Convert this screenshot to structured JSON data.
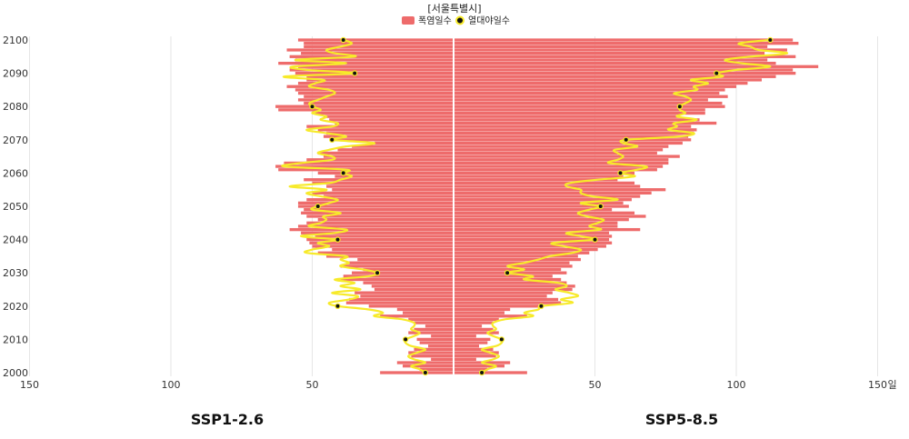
{
  "chart_data": {
    "type": "bar",
    "title": "[서울특별시]",
    "orientation": "horizontal-butterfly",
    "unit": "일",
    "legend": {
      "placement": "top-center",
      "bar_label": "폭염일수",
      "line_label": "열대야일수"
    },
    "colors": {
      "bar": "#ee6b6b",
      "line": "#f7ea2a",
      "marker": "#111111",
      "divider": "#ffffff",
      "grid": "#e6e6e6"
    },
    "x_axis": {
      "left_ticks": [
        150,
        100,
        50
      ],
      "right_ticks": [
        50,
        100,
        150
      ],
      "max": 150
    },
    "y_axis": {
      "ticks": [
        2000,
        2010,
        2020,
        2030,
        2040,
        2050,
        2060,
        2070,
        2080,
        2090,
        2100
      ]
    },
    "years": [
      2000,
      2001,
      2002,
      2003,
      2004,
      2005,
      2006,
      2007,
      2008,
      2009,
      2010,
      2011,
      2012,
      2013,
      2014,
      2015,
      2016,
      2017,
      2018,
      2019,
      2020,
      2021,
      2022,
      2023,
      2024,
      2025,
      2026,
      2027,
      2028,
      2029,
      2030,
      2031,
      2032,
      2033,
      2034,
      2035,
      2036,
      2037,
      2038,
      2039,
      2040,
      2041,
      2042,
      2043,
      2044,
      2045,
      2046,
      2047,
      2048,
      2049,
      2050,
      2051,
      2052,
      2053,
      2054,
      2055,
      2056,
      2057,
      2058,
      2059,
      2060,
      2061,
      2062,
      2063,
      2064,
      2065,
      2066,
      2067,
      2068,
      2069,
      2070,
      2071,
      2072,
      2073,
      2074,
      2075,
      2076,
      2077,
      2078,
      2079,
      2080,
      2081,
      2082,
      2083,
      2084,
      2085,
      2086,
      2087,
      2088,
      2089,
      2090,
      2091,
      2092,
      2093,
      2094,
      2095,
      2096,
      2097,
      2098,
      2099,
      2100
    ],
    "series": [
      {
        "name": "SSP1-2.6",
        "side": "left",
        "heatwave_days": [
          26,
          12,
          18,
          20,
          8,
          15,
          16,
          14,
          9,
          12,
          13,
          8,
          16,
          14,
          10,
          14,
          16,
          26,
          18,
          20,
          30,
          38,
          37,
          33,
          35,
          28,
          29,
          32,
          40,
          39,
          36,
          32,
          40,
          38,
          34,
          45,
          48,
          43,
          50,
          51,
          52,
          49,
          54,
          58,
          55,
          52,
          48,
          52,
          54,
          53,
          55,
          55,
          52,
          46,
          50,
          43,
          45,
          50,
          53,
          42,
          48,
          62,
          63,
          60,
          52,
          46,
          48,
          41,
          36,
          28,
          42,
          46,
          45,
          48,
          52,
          42,
          44,
          46,
          49,
          62,
          63,
          53,
          55,
          53,
          55,
          56,
          59,
          55,
          52,
          52,
          56,
          58,
          55,
          62,
          56,
          58,
          54,
          59,
          53,
          53,
          55
        ],
        "tropical_nights": [
          10,
          12,
          15,
          10,
          14,
          16,
          13,
          10,
          15,
          17,
          17,
          14,
          12,
          15,
          14,
          14,
          18,
          28,
          25,
          30,
          41,
          44,
          37,
          34,
          43,
          33,
          40,
          35,
          42,
          30,
          27,
          32,
          40,
          37,
          40,
          38,
          52,
          50,
          44,
          48,
          41,
          54,
          42,
          38,
          51,
          47,
          45,
          46,
          40,
          50,
          48,
          44,
          41,
          47,
          52,
          45,
          58,
          44,
          40,
          36,
          39,
          38,
          60,
          54,
          43,
          43,
          48,
          44,
          38,
          28,
          43,
          38,
          45,
          52,
          43,
          41,
          47,
          45,
          50,
          47,
          50,
          51,
          48,
          45,
          42,
          44,
          51,
          49,
          46,
          60,
          35,
          52,
          57,
          38,
          56,
          35,
          42,
          45,
          40,
          36,
          39
        ]
      },
      {
        "name": "SSP5-8.5",
        "side": "right",
        "heatwave_days": [
          26,
          12,
          18,
          20,
          8,
          15,
          16,
          14,
          9,
          12,
          13,
          8,
          16,
          14,
          10,
          14,
          16,
          26,
          18,
          20,
          30,
          38,
          37,
          33,
          35,
          42,
          43,
          40,
          38,
          35,
          40,
          38,
          42,
          41,
          45,
          44,
          48,
          51,
          54,
          56,
          55,
          56,
          55,
          66,
          58,
          58,
          62,
          68,
          64,
          56,
          62,
          60,
          63,
          66,
          70,
          75,
          66,
          64,
          58,
          60,
          64,
          72,
          74,
          76,
          76,
          80,
          72,
          74,
          76,
          81,
          84,
          83,
          85,
          86,
          84,
          93,
          87,
          80,
          89,
          89,
          96,
          95,
          90,
          97,
          94,
          96,
          100,
          104,
          109,
          114,
          121,
          120,
          129,
          114,
          111,
          121,
          110,
          118,
          111,
          122,
          120
        ],
        "tropical_nights": [
          10,
          12,
          15,
          10,
          14,
          16,
          13,
          10,
          15,
          17,
          17,
          14,
          12,
          15,
          14,
          14,
          18,
          28,
          25,
          30,
          31,
          42,
          38,
          44,
          41,
          36,
          40,
          37,
          25,
          28,
          19,
          25,
          19,
          25,
          30,
          34,
          42,
          45,
          39,
          35,
          50,
          45,
          40,
          52,
          48,
          51,
          53,
          47,
          44,
          48,
          52,
          45,
          58,
          49,
          45,
          45,
          40,
          41,
          51,
          64,
          59,
          65,
          68,
          55,
          58,
          60,
          58,
          57,
          65,
          60,
          61,
          80,
          85,
          76,
          79,
          78,
          86,
          79,
          82,
          80,
          80,
          82,
          84,
          82,
          78,
          86,
          85,
          90,
          84,
          95,
          93,
          100,
          112,
          102,
          96,
          105,
          118,
          108,
          105,
          101,
          112
        ]
      }
    ]
  }
}
